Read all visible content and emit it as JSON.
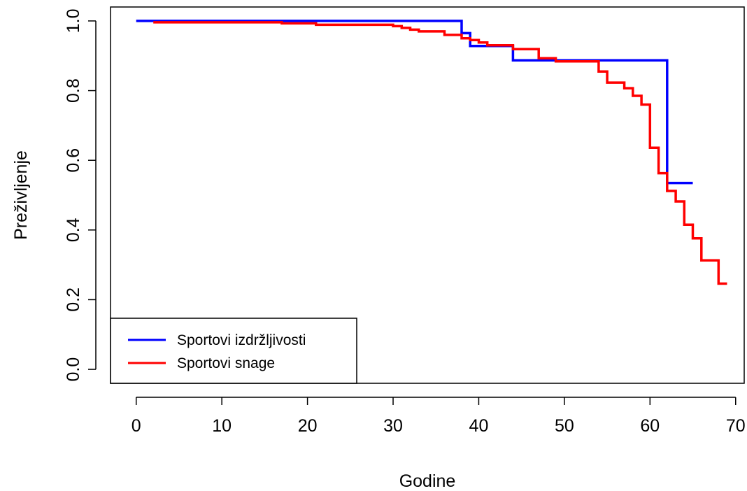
{
  "chart_data": {
    "type": "line",
    "step": true,
    "xlabel": "Godine",
    "ylabel": "Preživljenje",
    "xlim": [
      -3,
      71
    ],
    "ylim": [
      -0.04,
      1.04
    ],
    "xticks": [
      0,
      10,
      20,
      30,
      40,
      50,
      60,
      70
    ],
    "yticks": [
      0.0,
      0.2,
      0.4,
      0.6,
      0.8,
      1.0
    ],
    "grid": false,
    "legend_position": "bottom-left",
    "series": [
      {
        "name": "Sportovi izdržljivosti",
        "color": "#0000FF",
        "x": [
          0,
          38,
          39,
          44,
          62,
          65
        ],
        "y": [
          1.0,
          0.965,
          0.928,
          0.887,
          0.535,
          0.535
        ]
      },
      {
        "name": "Sportovi snage",
        "color": "#FF0000",
        "x": [
          2,
          17,
          21,
          30,
          31,
          32,
          33,
          36,
          38,
          39,
          40,
          41,
          44,
          47,
          49,
          54,
          55,
          57,
          58,
          59,
          60,
          61,
          62,
          63,
          64,
          65,
          66,
          68,
          69
        ],
        "y": [
          0.996,
          0.993,
          0.989,
          0.985,
          0.98,
          0.975,
          0.97,
          0.96,
          0.95,
          0.945,
          0.938,
          0.93,
          0.919,
          0.893,
          0.884,
          0.855,
          0.823,
          0.807,
          0.785,
          0.76,
          0.636,
          0.563,
          0.512,
          0.482,
          0.415,
          0.376,
          0.313,
          0.246,
          0.246
        ]
      }
    ]
  }
}
